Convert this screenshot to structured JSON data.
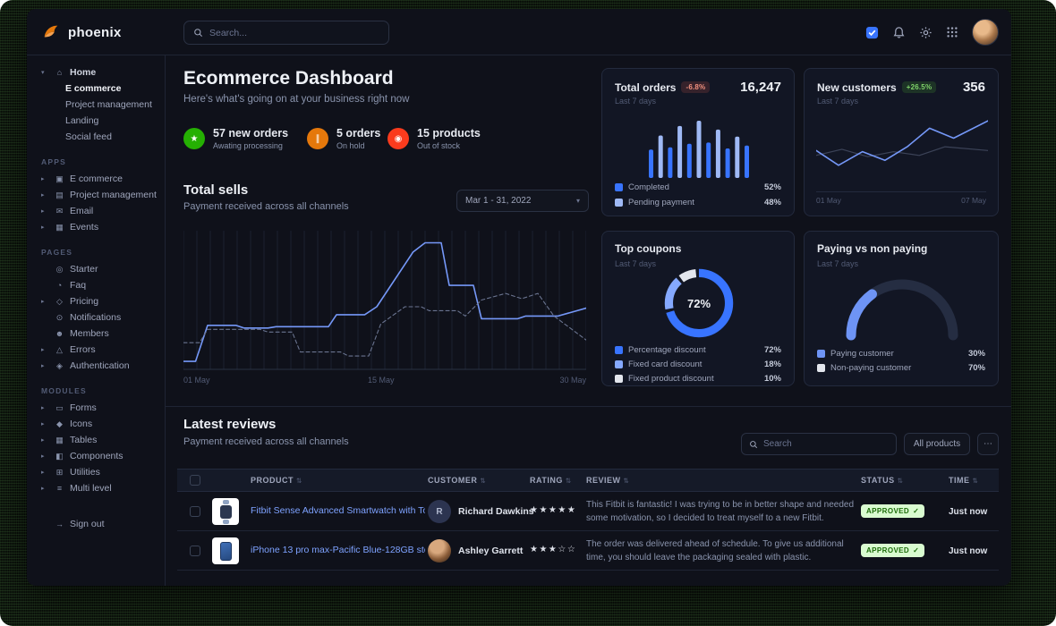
{
  "topbar": {
    "search_placeholder": "Search..."
  },
  "icons": {
    "sort": "⇅",
    "check": "✓",
    "chevron_down": "▾",
    "ellipsis": "⋯"
  },
  "sidebar": {
    "logo_text": "phoenix",
    "groups": [
      {
        "heading": "",
        "items": [
          {
            "label": "Home",
            "caret": "▾",
            "glyph": "⌂",
            "children": [
              {
                "label": "E commerce",
                "active": true
              },
              {
                "label": "Project management"
              },
              {
                "label": "Landing"
              },
              {
                "label": "Social feed"
              }
            ]
          }
        ]
      },
      {
        "heading": "APPS",
        "items": [
          {
            "label": "E commerce",
            "caret": "▸",
            "glyph": "▣"
          },
          {
            "label": "Project management",
            "caret": "▸",
            "glyph": "▤"
          },
          {
            "label": "Email",
            "caret": "▸",
            "glyph": "✉"
          },
          {
            "label": "Events",
            "caret": "▸",
            "glyph": "▦"
          }
        ]
      },
      {
        "heading": "PAGES",
        "items": [
          {
            "label": "Starter",
            "glyph": "◎"
          },
          {
            "label": "Faq",
            "glyph": "◔"
          },
          {
            "label": "Pricing",
            "caret": "▸",
            "glyph": "◇"
          },
          {
            "label": "Notifications",
            "glyph": "⊙"
          },
          {
            "label": "Members",
            "glyph": "☻"
          },
          {
            "label": "Errors",
            "caret": "▸",
            "glyph": "△"
          },
          {
            "label": "Authentication",
            "caret": "▸",
            "glyph": "◈"
          }
        ]
      },
      {
        "heading": "MODULES",
        "items": [
          {
            "label": "Forms",
            "caret": "▸",
            "glyph": "▭"
          },
          {
            "label": "Icons",
            "caret": "▸",
            "glyph": "◆"
          },
          {
            "label": "Tables",
            "caret": "▸",
            "glyph": "▦"
          },
          {
            "label": "Components",
            "caret": "▸",
            "glyph": "◧"
          },
          {
            "label": "Utilities",
            "caret": "▸",
            "glyph": "⊞"
          },
          {
            "label": "Multi level",
            "caret": "▸",
            "glyph": "≡"
          }
        ]
      }
    ],
    "signout": {
      "label": "Sign out",
      "glyph": "→"
    }
  },
  "header": {
    "title": "Ecommerce Dashboard",
    "subtitle": "Here's what's going on at your business right now"
  },
  "stats": [
    {
      "glyph": "★",
      "color": "#25b003",
      "value": "57 new orders",
      "label": "Awating processing"
    },
    {
      "glyph": "∥",
      "color": "#e5780b",
      "value": "5 orders",
      "label": "On hold"
    },
    {
      "glyph": "◉",
      "color": "#fa3b1d",
      "value": "15 products",
      "label": "Out of stock"
    }
  ],
  "total_sells": {
    "title": "Total sells",
    "subtitle": "Payment received across all channels",
    "date_range": "Mar 1 - 31, 2022",
    "x_labels": [
      "01 May",
      "15 May",
      "30 May"
    ]
  },
  "cards": {
    "total_orders": {
      "title": "Total orders",
      "badge": "-6.8%",
      "period": "Last 7 days",
      "value": "16,247",
      "legend": [
        {
          "label": "Completed",
          "value": "52%"
        },
        {
          "label": "Pending payment",
          "value": "48%"
        }
      ]
    },
    "new_customers": {
      "title": "New customers",
      "badge": "+26.5%",
      "period": "Last 7 days",
      "value": "356",
      "x_labels": [
        "01 May",
        "07 May"
      ]
    },
    "top_coupons": {
      "title": "Top coupons",
      "period": "Last 7 days",
      "center_label": "72%",
      "legend": [
        {
          "label": "Percentage discount",
          "value": "72%"
        },
        {
          "label": "Fixed card discount",
          "value": "18%"
        },
        {
          "label": "Fixed product discount",
          "value": "10%"
        }
      ]
    },
    "paying": {
      "title": "Paying vs non paying",
      "period": "Last 7 days",
      "legend": [
        {
          "label": "Paying customer",
          "value": "30%"
        },
        {
          "label": "Non-paying customer",
          "value": "70%"
        }
      ]
    }
  },
  "reviews": {
    "title": "Latest reviews",
    "subtitle": "Payment received across all channels",
    "search_placeholder": "Search",
    "filter_label": "All products",
    "columns": [
      "PRODUCT",
      "CUSTOMER",
      "RATING",
      "REVIEW",
      "STATUS",
      "TIME"
    ],
    "rows": [
      {
        "product": "Fitbit Sense Advanced Smartwatch with Tools fo...",
        "customer": "Richard Dawkins",
        "avatar_text": "R",
        "stars": "★★★★★",
        "review": "This Fitbit is fantastic! I was trying to be in better shape and needed some motivation, so I decided to treat myself to a new Fitbit.",
        "status": "APPROVED",
        "time": "Just now"
      },
      {
        "product": "iPhone 13 pro max-Pacific Blue-128GB storage",
        "customer": "Ashley Garrett",
        "avatar_text": "",
        "stars": "★★★☆☆",
        "review": "The order was delivered ahead of schedule. To give us additional time, you should leave the packaging sealed with plastic.",
        "status": "APPROVED",
        "time": "Just now"
      }
    ]
  },
  "charts": {
    "total_sells": {
      "type": "line",
      "grid_count": 30,
      "axis": true,
      "series": [
        {
          "name": "current",
          "color": "#7598f8",
          "width": 1.6,
          "dash": "",
          "points": [
            [
              0,
              6
            ],
            [
              3,
              6
            ],
            [
              6,
              33
            ],
            [
              13,
              33
            ],
            [
              15,
              31
            ],
            [
              21,
              31
            ],
            [
              23,
              32
            ],
            [
              36,
              32
            ],
            [
              38,
              41
            ],
            [
              45,
              41
            ],
            [
              48,
              47
            ],
            [
              57,
              88
            ],
            [
              60,
              95
            ],
            [
              64,
              95
            ],
            [
              66,
              63
            ],
            [
              72,
              63
            ],
            [
              74,
              38
            ],
            [
              83,
              38
            ],
            [
              85,
              40
            ],
            [
              93,
              40
            ],
            [
              100,
              46
            ]
          ]
        },
        {
          "name": "previous",
          "color": "#6a7490",
          "width": 1.1,
          "dash": "4 3",
          "points": [
            [
              0,
              20
            ],
            [
              4,
              20
            ],
            [
              6,
              30
            ],
            [
              19,
              30
            ],
            [
              21,
              28
            ],
            [
              27,
              28
            ],
            [
              29,
              13
            ],
            [
              39,
              13
            ],
            [
              41,
              10
            ],
            [
              46,
              10
            ],
            [
              49,
              34
            ],
            [
              55,
              47
            ],
            [
              59,
              47
            ],
            [
              61,
              44
            ],
            [
              68,
              44
            ],
            [
              70,
              40
            ],
            [
              74,
              52
            ],
            [
              80,
              57
            ],
            [
              84,
              53
            ],
            [
              88,
              57
            ],
            [
              92,
              40
            ],
            [
              100,
              22
            ]
          ]
        }
      ]
    },
    "orders_bars": {
      "type": "bar",
      "values": [
        48,
        72,
        52,
        88,
        58,
        97,
        60,
        82,
        50,
        70,
        55
      ],
      "colors": [
        "#3874ff",
        "#9fb9f5"
      ]
    },
    "customers_line": {
      "type": "line",
      "axis": false,
      "series": [
        {
          "color": "#3c4358",
          "width": 1.2,
          "dash": "",
          "points": [
            [
              0,
              38
            ],
            [
              15,
              48
            ],
            [
              30,
              36
            ],
            [
              45,
              44
            ],
            [
              60,
              38
            ],
            [
              75,
              52
            ],
            [
              100,
              46
            ]
          ]
        },
        {
          "color": "#7598f8",
          "width": 1.6,
          "dash": "",
          "points": [
            [
              0,
              46
            ],
            [
              13,
              22
            ],
            [
              27,
              44
            ],
            [
              40,
              30
            ],
            [
              53,
              52
            ],
            [
              66,
              82
            ],
            [
              80,
              66
            ],
            [
              100,
              94
            ]
          ]
        }
      ]
    },
    "coupons_donut": {
      "type": "donut",
      "values": [
        72,
        18,
        10
      ],
      "colors": [
        "#3874ff",
        "#85a9ff",
        "#e3e6ed"
      ]
    },
    "paying_gauge": {
      "type": "gauge",
      "value": 30,
      "color": "#6e94f5",
      "track": "#252d42"
    }
  }
}
